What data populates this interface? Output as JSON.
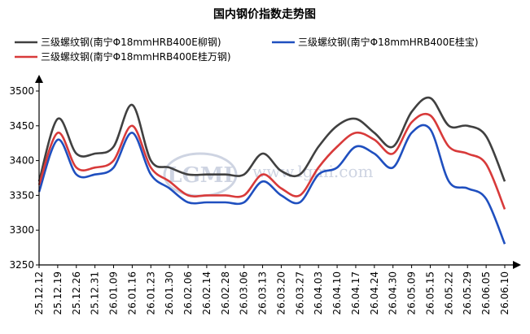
{
  "chart_data": {
    "type": "line",
    "title": "国内钢价指数走势图",
    "xlabel": "",
    "ylabel": "",
    "ylim": [
      3250,
      3500
    ],
    "yticks": [
      3250,
      3300,
      3350,
      3400,
      3450,
      3500
    ],
    "xticks": [
      "25.12.12",
      "25.12.19",
      "25.12.26",
      "25.12.31",
      "26.01.09",
      "26.01.16",
      "26.01.23",
      "26.01.30",
      "26.02.06",
      "26.02.14",
      "26.02.28",
      "26.03.06",
      "26.03.13",
      "26.03.20",
      "26.03.27",
      "26.04.03",
      "26.04.10",
      "26.04.17",
      "26.04.24",
      "26.04.30",
      "26.05.09",
      "26.05.15",
      "26.05.22",
      "26.05.29",
      "26.06.05",
      "26.06.10"
    ],
    "grid": false,
    "legend_position": "top",
    "watermark": "www.lgmi.com",
    "series": [
      {
        "name": "三级螺纹钢(南宁Φ18mmHRB400E柳钢)",
        "color": "#404040",
        "values": [
          3370,
          3460,
          3410,
          3410,
          3420,
          3480,
          3400,
          3390,
          3380,
          3380,
          3380,
          3380,
          3410,
          3385,
          3380,
          3420,
          3450,
          3460,
          3440,
          3420,
          3470,
          3490,
          3450,
          3450,
          3435,
          3370
        ]
      },
      {
        "name": "三级螺纹钢(南宁Φ18mmHRB400E桂宝)",
        "color": "#1f4fbf",
        "values": [
          3355,
          3430,
          3380,
          3380,
          3390,
          3440,
          3380,
          3360,
          3340,
          3340,
          3340,
          3340,
          3370,
          3350,
          3340,
          3380,
          3390,
          3420,
          3410,
          3390,
          3440,
          3445,
          3370,
          3360,
          3345,
          3280
        ]
      },
      {
        "name": "三级螺纹钢(南宁Φ18mmHRB400E桂万钢)",
        "color": "#d83a3a",
        "values": [
          3365,
          3440,
          3390,
          3390,
          3400,
          3450,
          3390,
          3370,
          3350,
          3350,
          3350,
          3350,
          3380,
          3360,
          3350,
          3390,
          3420,
          3440,
          3430,
          3410,
          3455,
          3465,
          3420,
          3410,
          3395,
          3330
        ]
      }
    ]
  }
}
